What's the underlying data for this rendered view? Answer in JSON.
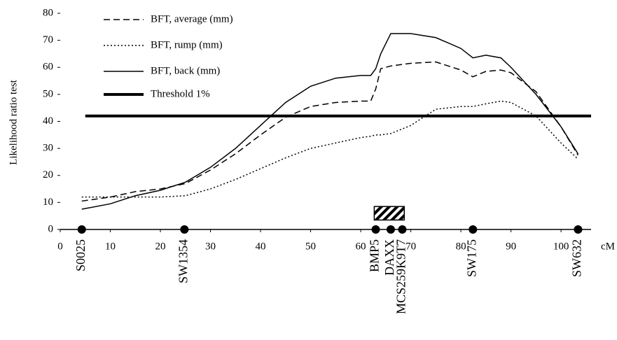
{
  "chart_data": {
    "type": "line",
    "y_label": "Likelihood ratio test",
    "x_unit": "cM",
    "xlim": [
      0,
      106
    ],
    "ylim": [
      0,
      80
    ],
    "xticks": [
      0,
      10,
      20,
      30,
      40,
      50,
      60,
      70,
      80,
      90,
      100
    ],
    "yticks": [
      0,
      10,
      20,
      30,
      40,
      50,
      60,
      70,
      80
    ],
    "x": [
      4.3,
      10,
      15,
      20,
      25,
      30,
      35,
      40,
      45,
      50,
      55,
      60,
      62,
      63,
      64,
      66,
      70,
      75,
      80,
      82.4,
      85,
      88,
      90,
      95,
      100,
      103.4
    ],
    "series": [
      {
        "name": "BFT, average (mm)",
        "color": "#000000",
        "style": "dashed",
        "values": [
          10.5,
          12,
          14,
          15,
          17,
          22,
          28,
          35,
          41.5,
          45.5,
          47,
          47.5,
          47.5,
          52,
          59.5,
          60.5,
          61.5,
          62,
          59,
          56.5,
          58.5,
          59,
          58,
          51,
          38,
          27.5
        ]
      },
      {
        "name": "BFT, rump (mm)",
        "color": "#000000",
        "style": "dotted",
        "values": [
          12,
          12,
          12,
          12,
          12.5,
          15,
          18.5,
          22.5,
          26.5,
          30,
          32,
          34,
          34.5,
          35,
          35,
          35.5,
          38.5,
          44.5,
          45.5,
          45.5,
          46.5,
          47.5,
          47,
          42,
          32,
          26
        ]
      },
      {
        "name": "BFT, back (mm)",
        "color": "#000000",
        "style": "solid",
        "values": [
          7.5,
          9.5,
          12.5,
          14.5,
          17.5,
          23,
          30,
          38.5,
          47,
          53,
          56,
          57,
          57,
          59.5,
          65,
          72.5,
          72.5,
          71,
          67,
          63.5,
          64.5,
          63.5,
          60,
          50,
          38,
          28
        ]
      }
    ],
    "threshold": {
      "name": "Threshold 1%",
      "value": 42,
      "xrange": [
        5,
        106
      ],
      "color": "#000000"
    },
    "markers": [
      {
        "label": "S0025",
        "x": 4.3
      },
      {
        "label": "SW1354",
        "x": 24.8
      },
      {
        "label": "BMP5",
        "x": 63
      },
      {
        "label": "DAXX",
        "x": 66
      },
      {
        "label": "MCS259K9T7",
        "x": 68.3
      },
      {
        "label": "SW175",
        "x": 82.4
      },
      {
        "label": "SW632",
        "x": 103.4
      }
    ],
    "region": {
      "x": [
        62.7,
        68.7
      ],
      "y": [
        3.5,
        8.5
      ]
    }
  }
}
